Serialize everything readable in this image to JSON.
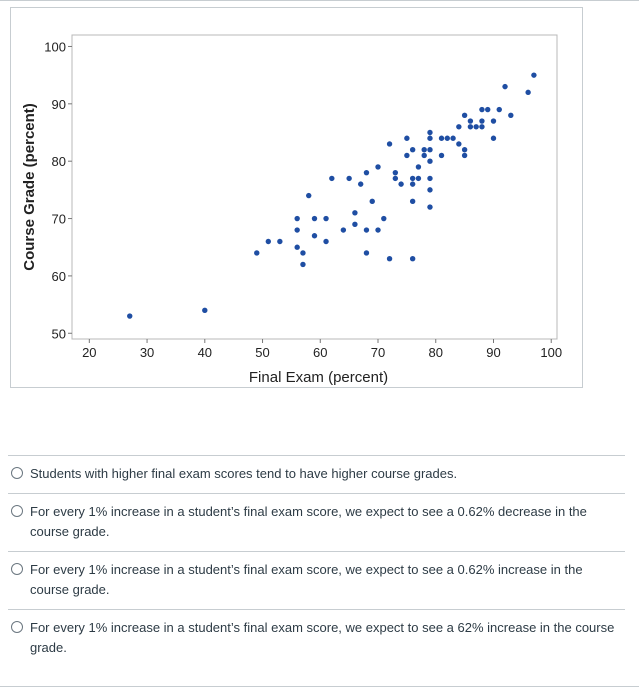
{
  "chart_data": {
    "type": "scatter",
    "xlabel": "Final Exam (percent)",
    "ylabel": "Course Grade (percent)",
    "xlim": [
      17,
      101
    ],
    "ylim": [
      49,
      102
    ],
    "xticks": [
      20,
      30,
      40,
      50,
      60,
      70,
      80,
      90,
      100
    ],
    "yticks": [
      50,
      60,
      70,
      80,
      90,
      100
    ],
    "grid": false,
    "marker_color": "#1f4ea3",
    "points": [
      [
        27,
        53
      ],
      [
        40,
        54
      ],
      [
        49,
        64
      ],
      [
        51,
        66
      ],
      [
        53,
        66
      ],
      [
        56,
        70
      ],
      [
        56,
        68
      ],
      [
        56,
        65
      ],
      [
        57,
        64
      ],
      [
        57,
        62
      ],
      [
        58,
        74
      ],
      [
        59,
        70
      ],
      [
        59,
        67
      ],
      [
        61,
        70
      ],
      [
        61,
        66
      ],
      [
        62,
        77
      ],
      [
        64,
        68
      ],
      [
        65,
        77
      ],
      [
        66,
        71
      ],
      [
        66,
        69
      ],
      [
        67,
        76
      ],
      [
        68,
        78
      ],
      [
        68,
        68
      ],
      [
        68,
        64
      ],
      [
        69,
        73
      ],
      [
        70,
        79
      ],
      [
        70,
        68
      ],
      [
        71,
        70
      ],
      [
        72,
        83
      ],
      [
        72,
        63
      ],
      [
        73,
        78
      ],
      [
        73,
        77
      ],
      [
        74,
        76
      ],
      [
        75,
        84
      ],
      [
        75,
        81
      ],
      [
        76,
        82
      ],
      [
        76,
        77
      ],
      [
        76,
        76
      ],
      [
        76,
        73
      ],
      [
        76,
        63
      ],
      [
        77,
        79
      ],
      [
        77,
        77
      ],
      [
        78,
        82
      ],
      [
        78,
        81
      ],
      [
        79,
        85
      ],
      [
        79,
        84
      ],
      [
        79,
        82
      ],
      [
        79,
        80
      ],
      [
        79,
        77
      ],
      [
        79,
        75
      ],
      [
        79,
        72
      ],
      [
        81,
        84
      ],
      [
        81,
        81
      ],
      [
        82,
        84
      ],
      [
        83,
        84
      ],
      [
        84,
        86
      ],
      [
        84,
        83
      ],
      [
        85,
        88
      ],
      [
        85,
        82
      ],
      [
        85,
        81
      ],
      [
        86,
        87
      ],
      [
        86,
        86
      ],
      [
        87,
        86
      ],
      [
        88,
        89
      ],
      [
        88,
        87
      ],
      [
        88,
        86
      ],
      [
        89,
        89
      ],
      [
        90,
        87
      ],
      [
        90,
        84
      ],
      [
        91,
        89
      ],
      [
        92,
        93
      ],
      [
        93,
        88
      ],
      [
        96,
        92
      ],
      [
        97,
        95
      ]
    ]
  },
  "options": [
    "Students with higher final exam scores tend to have higher course grades.",
    "For every 1% increase in a student’s final exam score, we expect to see a 0.62% decrease in the course grade.",
    "For every 1% increase in a student’s final exam score, we expect to see a 0.62% increase in the course grade.",
    "For every 1% increase in a student’s final exam score, we expect to see a 62% increase in the course grade."
  ]
}
